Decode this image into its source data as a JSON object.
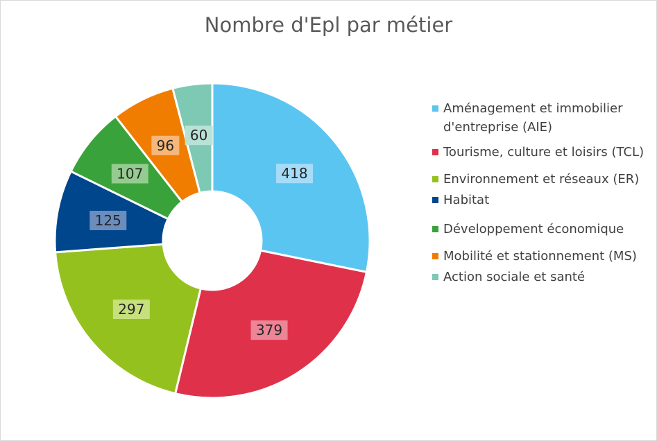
{
  "chart_data": {
    "type": "pie",
    "title": "Nombre d'Epl par métier",
    "legend_position": "right",
    "categories": [
      "Aménagement et immobilier d'entreprise (AIE)",
      "Tourisme, culture et loisirs (TCL)",
      "Environnement et réseaux (ER)",
      "Habitat",
      "Développement économique",
      "Mobilité et stationnement (MS)",
      "Action sociale et santé"
    ],
    "values": [
      418,
      379,
      297,
      125,
      107,
      96,
      60
    ],
    "colors": [
      "#5bc5f2",
      "#e0314b",
      "#95c11f",
      "#00468c",
      "#3aa23a",
      "#f07d00",
      "#7dc9b4"
    ],
    "label_colors": [
      "#a6dcf7",
      "#ec8596",
      "#c6e07d",
      "#6a8dbd",
      "#94cc8f",
      "#f8b77a",
      "#b9e2d6"
    ]
  }
}
